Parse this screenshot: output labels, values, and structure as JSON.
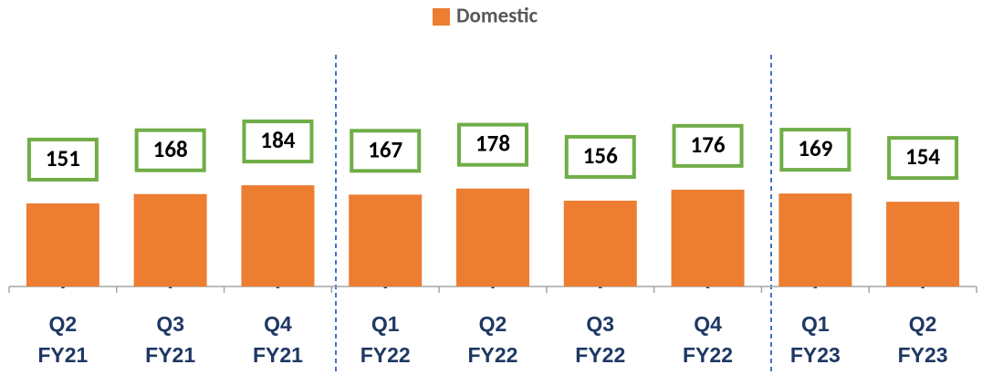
{
  "chart_data": {
    "type": "bar",
    "categories": [
      "Q2 FY21",
      "Q3 FY21",
      "Q4 FY21",
      "Q1 FY22",
      "Q2 FY22",
      "Q3 FY22",
      "Q4 FY22",
      "Q1 FY23",
      "Q2 FY23"
    ],
    "series": [
      {
        "name": "Domestic",
        "color": "#ed7d31",
        "values": [
          151,
          168,
          184,
          167,
          178,
          156,
          176,
          169,
          154
        ]
      }
    ],
    "zero_labels": [
      "-",
      "-",
      "-",
      "-",
      "-",
      "-",
      "-",
      "-",
      "-"
    ],
    "label_box_color": "#70ad47",
    "legend": "top"
  }
}
